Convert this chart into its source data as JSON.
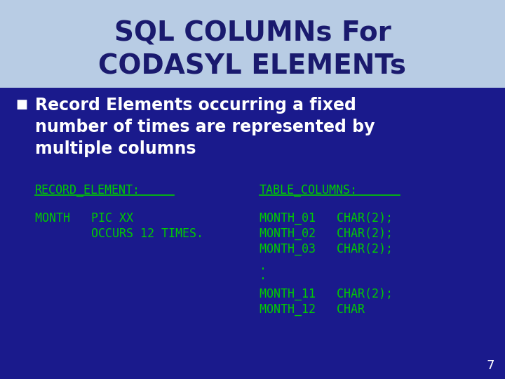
{
  "title_line1": "SQL COLUMNs For",
  "title_line2": "CODASYL ELEMENTs",
  "title_bg_color": "#b8cce4",
  "title_text_color": "#1a1a6e",
  "slide_bg_color": "#1a1a8c",
  "bullet_text_color": "#ffffff",
  "bullet_symbol": "■",
  "code_color": "#00cc00",
  "code_header_left": "RECORD_ELEMENT:",
  "code_header_right": "TABLE_COLUMNS:",
  "code_left_lines": [
    "MONTH   PIC XX",
    "        OCCURS 12 TIMES."
  ],
  "code_right_lines": [
    "MONTH_01   CHAR(2);",
    "MONTH_02   CHAR(2);",
    "MONTH_03   CHAR(2);",
    ".",
    ".",
    "MONTH_11   CHAR(2);",
    "MONTH_12   CHAR"
  ],
  "page_number": "7",
  "page_number_color": "#ffffff",
  "bullet_lines": [
    "Record Elements occurring a fixed",
    "number of times are represented by",
    "multiple columns"
  ]
}
